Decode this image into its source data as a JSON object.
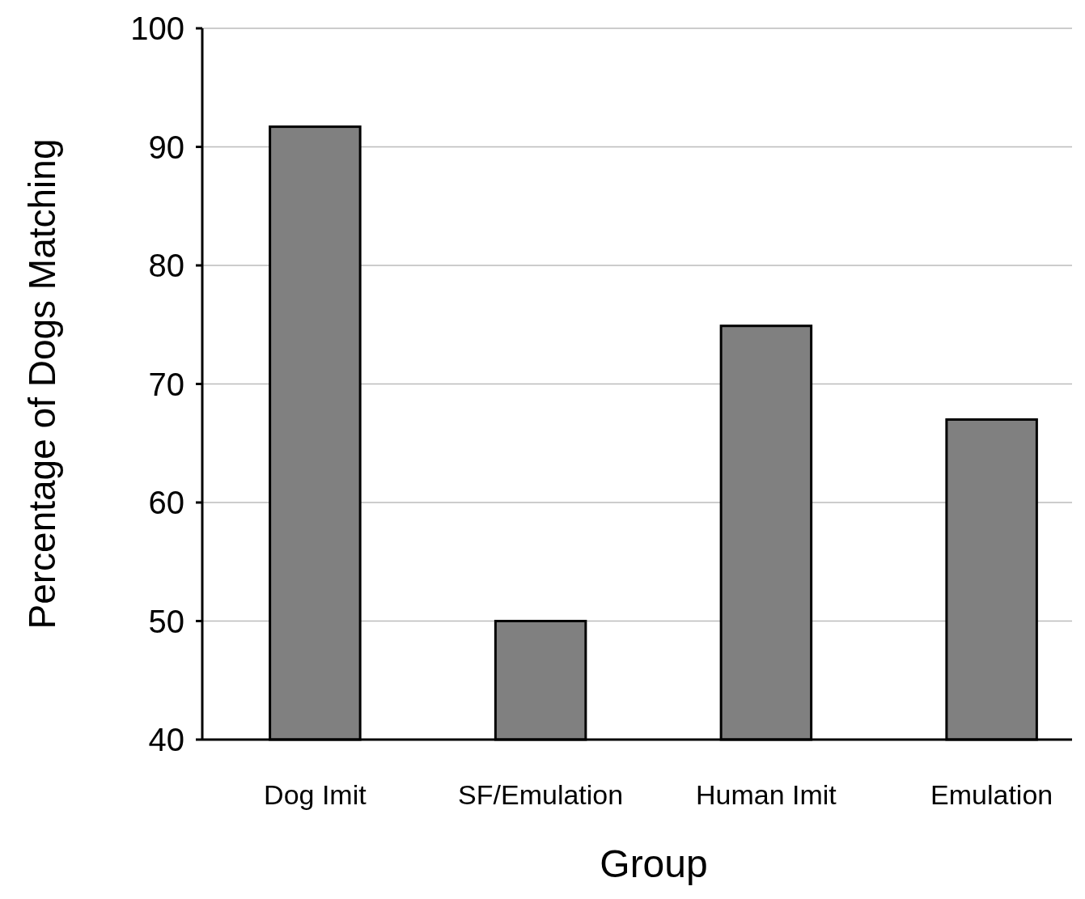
{
  "chart_data": {
    "type": "bar",
    "xlabel": "Group",
    "ylabel": "Percentage of Dogs Matching",
    "categories": [
      "Dog Imit",
      "SF/Emulation",
      "Human Imit",
      "Emulation"
    ],
    "values": [
      91.7,
      50,
      74.9,
      67
    ],
    "color": "#808080",
    "ylim": [
      40,
      100
    ],
    "yticks": [
      40,
      50,
      60,
      70,
      80,
      90,
      100
    ],
    "grid": "y"
  }
}
